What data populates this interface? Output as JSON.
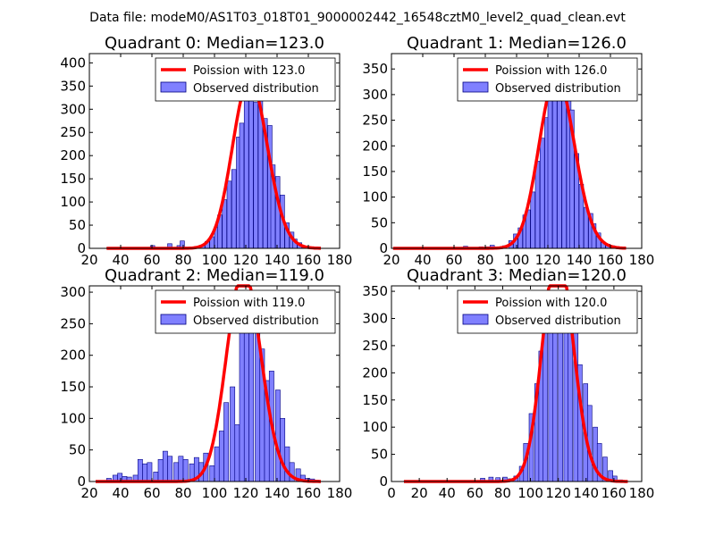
{
  "figure_title": "Data file: modeM0/AS1T03_018T01_9000002442_16548cztM0_level2_quad_clean.evt",
  "colors": {
    "bar_fill": "#8080ff",
    "bar_edge": "#000080",
    "curve": "#ff0000",
    "axis": "#000000"
  },
  "legend_labels": {
    "curve": "Poission with {m}",
    "bars": "Observed distribution"
  },
  "chart_data": [
    {
      "type": "bar",
      "title": "Quadrant 0: Median=123.0",
      "median": 123.0,
      "legend_curve": "Poission with 123.0",
      "legend_bars": "Observed distribution",
      "xlim": [
        20,
        180
      ],
      "ylim": [
        0,
        420
      ],
      "xticks": [
        20,
        40,
        60,
        80,
        100,
        120,
        140,
        160,
        180
      ],
      "yticks": [
        0,
        50,
        100,
        150,
        200,
        250,
        300,
        350,
        400
      ],
      "bin_width": 2.8,
      "bins": [
        [
          31,
          1
        ],
        [
          59,
          6
        ],
        [
          70,
          10
        ],
        [
          76,
          6
        ],
        [
          78,
          16
        ],
        [
          88,
          3
        ],
        [
          91,
          6
        ],
        [
          94,
          15
        ],
        [
          97,
          25
        ],
        [
          100,
          45
        ],
        [
          102,
          72
        ],
        [
          105,
          105
        ],
        [
          108,
          145
        ],
        [
          111,
          170
        ],
        [
          114,
          240
        ],
        [
          116,
          270
        ],
        [
          119,
          335
        ],
        [
          122,
          365
        ],
        [
          125,
          315
        ],
        [
          128,
          355
        ],
        [
          131,
          280
        ],
        [
          134,
          265
        ],
        [
          136,
          180
        ],
        [
          139,
          155
        ],
        [
          142,
          115
        ],
        [
          145,
          55
        ],
        [
          148,
          35
        ],
        [
          150,
          20
        ],
        [
          153,
          12
        ],
        [
          156,
          5
        ],
        [
          159,
          2
        ]
      ],
      "curve_range": [
        31,
        168
      ]
    },
    {
      "type": "bar",
      "title": "Quadrant 1: Median=126.0",
      "median": 126.0,
      "legend_curve": "Poission with 126.0",
      "legend_bars": "Observed distribution",
      "xlim": [
        20,
        180
      ],
      "ylim": [
        0,
        380
      ],
      "xticks": [
        20,
        40,
        60,
        80,
        100,
        120,
        140,
        160,
        180
      ],
      "yticks": [
        0,
        50,
        100,
        150,
        200,
        250,
        300,
        350
      ],
      "bin_width": 2.8,
      "bins": [
        [
          22,
          1
        ],
        [
          66,
          4
        ],
        [
          76,
          3
        ],
        [
          80,
          3
        ],
        [
          83,
          6
        ],
        [
          91,
          5
        ],
        [
          95,
          15
        ],
        [
          98,
          28
        ],
        [
          101,
          40
        ],
        [
          104,
          65
        ],
        [
          106,
          75
        ],
        [
          109,
          110
        ],
        [
          112,
          170
        ],
        [
          115,
          215
        ],
        [
          118,
          255
        ],
        [
          120,
          300
        ],
        [
          123,
          315
        ],
        [
          126,
          335
        ],
        [
          129,
          310
        ],
        [
          132,
          295
        ],
        [
          134,
          270
        ],
        [
          137,
          185
        ],
        [
          140,
          125
        ],
        [
          143,
          80
        ],
        [
          146,
          68
        ],
        [
          148,
          48
        ],
        [
          151,
          30
        ],
        [
          154,
          12
        ],
        [
          157,
          8
        ],
        [
          160,
          5
        ],
        [
          163,
          2
        ]
      ],
      "curve_range": [
        21,
        170
      ]
    },
    {
      "type": "bar",
      "title": "Quadrant 2: Median=119.0",
      "median": 119.0,
      "legend_curve": "Poission with 119.0",
      "legend_bars": "Observed distribution",
      "xlim": [
        20,
        180
      ],
      "ylim": [
        0,
        310
      ],
      "xticks": [
        20,
        40,
        60,
        80,
        100,
        120,
        140,
        160,
        180
      ],
      "yticks": [
        0,
        50,
        100,
        150,
        200,
        250,
        300
      ],
      "bin_width": 3.0,
      "bins": [
        [
          31,
          5
        ],
        [
          35,
          10
        ],
        [
          38,
          13
        ],
        [
          41,
          8
        ],
        [
          44,
          7
        ],
        [
          48,
          10
        ],
        [
          51,
          35
        ],
        [
          54,
          28
        ],
        [
          57,
          30
        ],
        [
          61,
          15
        ],
        [
          64,
          35
        ],
        [
          67,
          48
        ],
        [
          70,
          40
        ],
        [
          74,
          30
        ],
        [
          77,
          40
        ],
        [
          80,
          35
        ],
        [
          84,
          28
        ],
        [
          87,
          38
        ],
        [
          90,
          30
        ],
        [
          93,
          45
        ],
        [
          97,
          25
        ],
        [
          100,
          55
        ],
        [
          103,
          80
        ],
        [
          106,
          125
        ],
        [
          110,
          150
        ],
        [
          113,
          90
        ],
        [
          116,
          245
        ],
        [
          119,
          285
        ],
        [
          122,
          280
        ],
        [
          126,
          265
        ],
        [
          129,
          210
        ],
        [
          132,
          160
        ],
        [
          135,
          175
        ],
        [
          139,
          145
        ],
        [
          142,
          100
        ],
        [
          145,
          55
        ],
        [
          148,
          30
        ],
        [
          152,
          20
        ],
        [
          155,
          10
        ],
        [
          158,
          5
        ],
        [
          161,
          4
        ],
        [
          164,
          2
        ]
      ],
      "curve_range": [
        24,
        168
      ]
    },
    {
      "type": "bar",
      "title": "Quadrant 3: Median=120.0",
      "median": 120.0,
      "legend_curve": "Poission with 120.0",
      "legend_bars": "Observed distribution",
      "xlim": [
        0,
        180
      ],
      "ylim": [
        0,
        360
      ],
      "xticks": [
        0,
        20,
        40,
        60,
        80,
        100,
        120,
        140,
        160,
        180
      ],
      "yticks": [
        0,
        50,
        100,
        150,
        200,
        250,
        300,
        350
      ],
      "bin_width": 3.2,
      "bins": [
        [
          9,
          1
        ],
        [
          64,
          6
        ],
        [
          70,
          8
        ],
        [
          75,
          7
        ],
        [
          80,
          8
        ],
        [
          84,
          5
        ],
        [
          88,
          10
        ],
        [
          92,
          28
        ],
        [
          95,
          70
        ],
        [
          99,
          125
        ],
        [
          103,
          180
        ],
        [
          106,
          240
        ],
        [
          109,
          280
        ],
        [
          113,
          320
        ],
        [
          116,
          315
        ],
        [
          120,
          330
        ],
        [
          124,
          325
        ],
        [
          127,
          320
        ],
        [
          131,
          280
        ],
        [
          134,
          215
        ],
        [
          138,
          180
        ],
        [
          141,
          140
        ],
        [
          145,
          100
        ],
        [
          148,
          70
        ],
        [
          152,
          45
        ],
        [
          156,
          20
        ],
        [
          159,
          10
        ],
        [
          163,
          3
        ]
      ],
      "curve_range": [
        9,
        170
      ]
    }
  ]
}
